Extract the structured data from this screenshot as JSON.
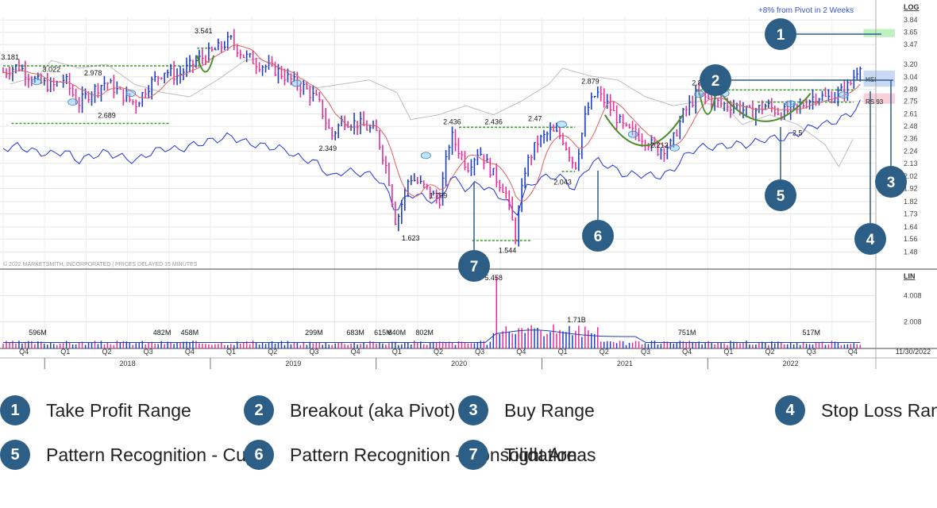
{
  "colors": {
    "price_up": "#1f3fbf",
    "price_down": "#e0309a",
    "moving_average": "#e06060",
    "relative_strength": "#2233dd",
    "index_line": "#bdbdbd",
    "pattern_cup": "#4a8f2a",
    "tight_level": "#3a9a2a",
    "badge": "#2d5f86",
    "take_profit_zone": "#bff0bf",
    "buy_zone": "#c9d9f5",
    "stop_loss_zone": "#f7d0d8",
    "header_note": "#3355cc",
    "volume_up": "#1f3fbf",
    "volume_down": "#e0309a"
  },
  "header_note": "+8% from Pivot in 2 Weeks",
  "copyright": "© 2022 MARKETSMITH, INCORPORATED | PRICES DELAYED 15 MINUTES",
  "scale_labels": {
    "price": "LOG",
    "volume": "LIN"
  },
  "side_labels": {
    "hsi": "HSI",
    "rs": "RS 93"
  },
  "date_label": "11/30/2022",
  "callouts": [
    {
      "num": "1",
      "label": "Take Profit Range"
    },
    {
      "num": "2",
      "label": "Breakout (aka Pivot)"
    },
    {
      "num": "3",
      "label": "Buy Range"
    },
    {
      "num": "4",
      "label": "Stop Loss Range"
    },
    {
      "num": "5",
      "label": "Pattern Recognition - Cup"
    },
    {
      "num": "6",
      "label": "Pattern Recognition - Consolidation"
    },
    {
      "num": "7",
      "label": "Tight Areas"
    }
  ],
  "chart_data": [
    {
      "type": "line",
      "description_scale": "log",
      "y_ticks": [
        "3.84",
        "3.65",
        "3.47",
        "3.20",
        "3.04",
        "2.89",
        "2.75",
        "2.61",
        "2.48",
        "2.36",
        "2.24",
        "2.13",
        "2.02",
        "1.92",
        "1.82",
        "1.73",
        "1.64",
        "1.56",
        "1.48"
      ],
      "quarter_ticks": [
        "Q4",
        "Q1",
        "Q2",
        "Q3",
        "Q4",
        "Q1",
        "Q2",
        "Q3",
        "Q4",
        "Q1",
        "Q2",
        "Q3",
        "Q4",
        "Q1",
        "Q2",
        "Q3",
        "Q4",
        "Q1",
        "Q2",
        "Q3",
        "Q4"
      ],
      "years": [
        "2018",
        "2019",
        "2020",
        "2021",
        "2022"
      ],
      "series": [
        {
          "name": "HSI",
          "x": [
            "2017-10",
            "2017-12",
            "2018-01",
            "2018-03",
            "2018-05",
            "2018-07",
            "2018-09",
            "2018-11",
            "2019-01",
            "2019-03",
            "2019-04",
            "2019-06",
            "2019-08",
            "2019-10",
            "2019-12",
            "2020-02",
            "2020-03",
            "2020-05",
            "2020-07",
            "2020-09",
            "2020-11",
            "2021-01",
            "2021-02",
            "2021-04",
            "2021-06",
            "2021-08",
            "2021-10",
            "2021-12",
            "2022-02",
            "2022-03",
            "2022-05",
            "2022-07",
            "2022-09",
            "2022-10",
            "2022-11"
          ],
          "values": [
            2.95,
            3.05,
            3.25,
            3.15,
            3.2,
            2.95,
            2.85,
            2.8,
            3.0,
            3.25,
            3.28,
            3.1,
            2.9,
            2.95,
            3.0,
            2.85,
            2.55,
            2.6,
            2.7,
            2.6,
            2.75,
            2.95,
            3.15,
            3.05,
            3.0,
            2.8,
            2.7,
            2.75,
            2.65,
            2.5,
            2.6,
            2.5,
            2.3,
            2.1,
            2.35
          ]
        }
      ],
      "price_annotations": [
        {
          "x": "2017-10",
          "value": 3.181
        },
        {
          "x": "2018-01",
          "value": 3.022
        },
        {
          "x": "2018-04",
          "value": 2.978
        },
        {
          "x": "2018-05",
          "value": 2.689
        },
        {
          "x": "2018-12",
          "value": 3.541
        },
        {
          "x": "2019-09",
          "value": 2.349
        },
        {
          "x": "2020-03",
          "value": 1.623
        },
        {
          "x": "2020-05",
          "value": 1.799
        },
        {
          "x": "2020-06",
          "value": 2.436
        },
        {
          "x": "2020-09",
          "value": 2.436
        },
        {
          "x": "2020-10",
          "value": 1.544
        },
        {
          "x": "2020-12",
          "value": 2.47
        },
        {
          "x": "2021-02",
          "value": 2.043
        },
        {
          "x": "2021-04",
          "value": 2.879
        },
        {
          "x": "2021-09",
          "value": 2.212
        },
        {
          "x": "2021-12",
          "value": 2.861
        },
        {
          "x": "2022-07",
          "value": 2.5
        }
      ]
    },
    {
      "type": "bar",
      "title": "Volume",
      "y_ticks": [
        "4.008",
        "2.008"
      ],
      "annotations": [
        {
          "x": "2017-12",
          "label": "596M"
        },
        {
          "x": "2018-09",
          "label": "482M"
        },
        {
          "x": "2018-11",
          "label": "458M"
        },
        {
          "x": "2019-08",
          "label": "299M"
        },
        {
          "x": "2019-11",
          "label": "683M"
        },
        {
          "x": "2020-01",
          "label": "615M"
        },
        {
          "x": "2020-02",
          "label": "640M"
        },
        {
          "x": "2020-04",
          "label": "802M"
        },
        {
          "x": "2020-09",
          "label": "5.458"
        },
        {
          "x": "2021-03",
          "label": "1.71B"
        },
        {
          "x": "2021-11",
          "label": "751M"
        },
        {
          "x": "2022-08",
          "label": "517M"
        }
      ]
    }
  ]
}
